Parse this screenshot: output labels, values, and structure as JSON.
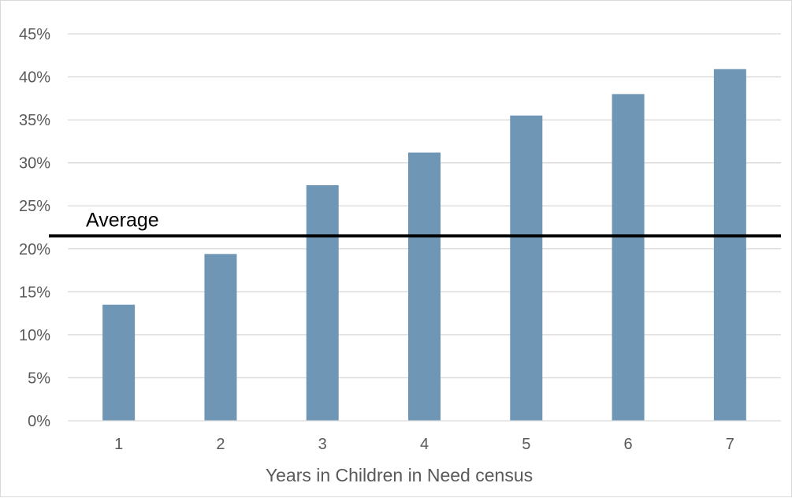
{
  "chart_data": {
    "type": "bar",
    "categories": [
      "1",
      "2",
      "3",
      "4",
      "5",
      "6",
      "7"
    ],
    "values": [
      13.5,
      19.4,
      27.4,
      31.2,
      35.5,
      38.0,
      40.9
    ],
    "ylim": [
      0,
      45
    ],
    "yticks": [
      0,
      5,
      10,
      15,
      20,
      25,
      30,
      35,
      40,
      45
    ],
    "ytick_labels": [
      "0%",
      "5%",
      "10%",
      "15%",
      "20%",
      "25%",
      "30%",
      "35%",
      "40%",
      "45%"
    ],
    "xlabel": "Years in Children in Need census",
    "ylabel": "",
    "grid": true,
    "reference_line": {
      "label": "Average",
      "value": 21.5
    },
    "colors": {
      "bar": "#6f96b5",
      "grid": "#d9d9d9",
      "reference_line": "#000000",
      "text": "#595959"
    }
  }
}
